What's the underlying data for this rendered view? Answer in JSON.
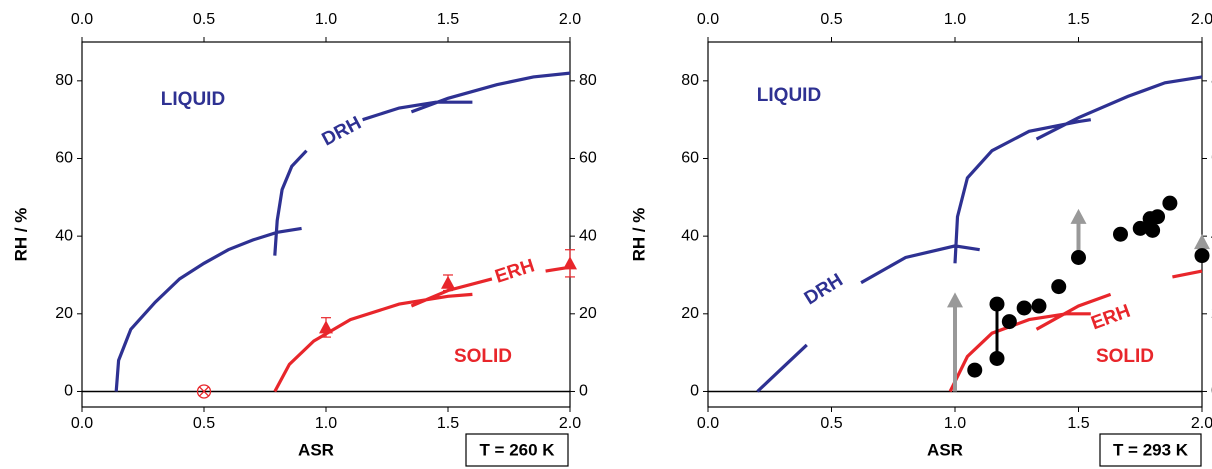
{
  "chart_data": [
    {
      "type": "line",
      "xlim": [
        0,
        2
      ],
      "ylim": [
        -4,
        90
      ],
      "xticks": [
        {
          "value": 0,
          "label": "0.0"
        },
        {
          "value": 0.5,
          "label": "0.5"
        },
        {
          "value": 1,
          "label": "1.0"
        },
        {
          "value": 1.5,
          "label": "1.5"
        },
        {
          "value": 2,
          "label": "2.0"
        }
      ],
      "yticks": [
        0,
        20,
        40,
        60,
        80
      ],
      "xlabel": "ASR",
      "ylabel": "RH / %",
      "box_label": "T = 260 K",
      "annotations": [
        {
          "text": "LIQUID",
          "color": "#2e3192"
        },
        {
          "text": "DRH",
          "color": "#2e3192"
        },
        {
          "text": "ERH",
          "color": "#e8262b"
        },
        {
          "text": "SOLID",
          "color": "#e8262b"
        }
      ],
      "series": [
        {
          "color": "#2e3192",
          "x": [
            0.14,
            0.15,
            0.2,
            0.3,
            0.4,
            0.5,
            0.6,
            0.7,
            0.8,
            0.9,
            null,
            0.79,
            0.8,
            0.82,
            0.86,
            0.92,
            null,
            1.15,
            1.3,
            1.45,
            1.6,
            null,
            1.35,
            1.5,
            1.7,
            1.85,
            2.0
          ],
          "y": [
            0,
            8,
            16,
            23,
            29,
            33,
            36.5,
            39,
            41,
            42,
            null,
            35,
            44,
            52,
            58,
            62,
            null,
            70,
            73,
            74.5,
            74.5,
            null,
            72,
            75.5,
            79,
            81,
            82
          ]
        },
        {
          "color": "#e8262b",
          "x": [
            0.79,
            0.85,
            0.95,
            1.1,
            1.3,
            1.5,
            1.6,
            null,
            1.35,
            1.5,
            1.68,
            null,
            1.9,
            2.0
          ],
          "y": [
            0,
            7,
            13,
            18.5,
            22.5,
            24.5,
            25,
            null,
            22,
            26,
            29,
            null,
            31,
            32
          ]
        }
      ],
      "points": {
        "marker": "triangle",
        "color": "#e8262b",
        "x": [
          1.0,
          1.5,
          2.0
        ],
        "y": [
          16.5,
          28,
          33
        ],
        "errors": [
          2.5,
          2,
          3.5
        ]
      },
      "open_points": {
        "color": "#e8262b",
        "x": [
          0.5
        ],
        "y": [
          0
        ]
      }
    },
    {
      "type": "line",
      "xlim": [
        0,
        2
      ],
      "ylim": [
        -4,
        90
      ],
      "xticks": [
        {
          "value": 0,
          "label": "0.0"
        },
        {
          "value": 0.5,
          "label": "0.5"
        },
        {
          "value": 1,
          "label": "1.0"
        },
        {
          "value": 1.5,
          "label": "1.5"
        },
        {
          "value": 2,
          "label": "2.0"
        }
      ],
      "yticks": [
        0,
        20,
        40,
        60,
        80
      ],
      "xlabel": "ASR",
      "ylabel": "RH / %",
      "box_label": "T = 293 K",
      "annotations": [
        {
          "text": "LIQUID",
          "color": "#2e3192"
        },
        {
          "text": "DRH",
          "color": "#2e3192"
        },
        {
          "text": "ERH",
          "color": "#e8262b"
        },
        {
          "text": "SOLID",
          "color": "#e8262b"
        }
      ],
      "series": [
        {
          "color": "#2e3192",
          "x": [
            0.2,
            0.3,
            0.4,
            null,
            0.62,
            0.8,
            1.0,
            1.1,
            null,
            1.0,
            1.01,
            1.05,
            1.15,
            1.3,
            1.5,
            1.55,
            null,
            1.33,
            1.5,
            1.7,
            1.85,
            2.0
          ],
          "y": [
            0,
            6,
            12,
            null,
            28,
            34.5,
            37.5,
            36.5,
            null,
            33,
            45,
            55,
            62,
            67,
            69.5,
            70,
            null,
            65,
            70.5,
            76,
            79.5,
            81
          ]
        },
        {
          "color": "#e8262b",
          "x": [
            0.98,
            1.05,
            1.15,
            1.3,
            1.45,
            1.55,
            null,
            1.33,
            1.5,
            1.63,
            null,
            1.88,
            2.0
          ],
          "y": [
            0,
            9,
            15,
            18.5,
            20,
            20,
            null,
            16,
            22,
            25,
            null,
            29.5,
            31
          ]
        }
      ],
      "points": {
        "marker": "circle",
        "color": "#000000",
        "x": [
          1.08,
          1.17,
          1.17,
          1.22,
          1.28,
          1.34,
          1.42,
          1.5,
          1.67,
          1.75,
          1.79,
          1.8,
          1.82,
          1.87,
          2.0
        ],
        "y": [
          5.5,
          8.5,
          22.5,
          18,
          21.5,
          22,
          27,
          34.5,
          40.5,
          42,
          44.5,
          41.5,
          45,
          48.5,
          35
        ]
      },
      "ranges": [
        {
          "x": 1.17,
          "y": [
            8.5,
            22.5
          ],
          "color": "#000000"
        }
      ],
      "arrows": [
        {
          "x": 1.0,
          "y": [
            0,
            25
          ],
          "color": "#999999"
        },
        {
          "x": 1.5,
          "y": [
            35,
            46.5
          ],
          "color": "#999999"
        },
        {
          "x": 2.0,
          "y": [
            35,
            40
          ],
          "color": "#999999"
        }
      ]
    }
  ]
}
